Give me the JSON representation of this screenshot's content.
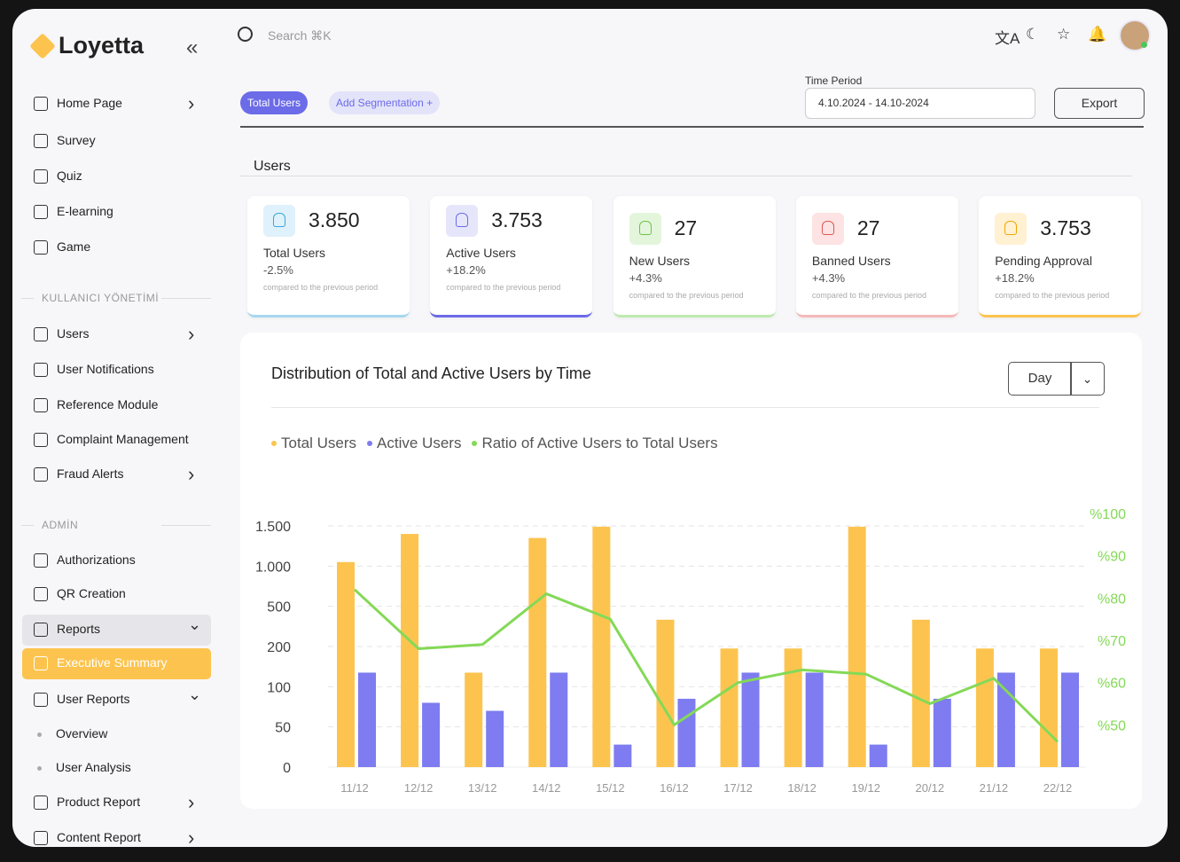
{
  "brand": "Loyetta",
  "search_placeholder": "Search ⌘K",
  "nav": [
    {
      "items": [
        "Home Page",
        "Survey",
        "Quiz",
        "E-learning",
        "Game"
      ]
    },
    {
      "heading": "KULLANICI YÖNETİMİ",
      "items": [
        "Users",
        "User Notifications",
        "Reference Module",
        "Complaint Management",
        "Fraud Alerts"
      ]
    },
    {
      "heading": "ADMİN",
      "items": [
        "Authorizations",
        "QR Creation",
        "Reports",
        "Executive Summary",
        "User Reports",
        "Overview",
        "User Analysis",
        "Product Report",
        "Content Report"
      ]
    }
  ],
  "toolbar": {
    "tabs": [
      "Total Users",
      "Add Segmentation +"
    ],
    "period_label": "Time Period",
    "period_value": "4.10.2024 - 14.10-2024",
    "export": "Export"
  },
  "section_title": "Users",
  "cards": [
    {
      "value": "3.850",
      "label": "Total Users",
      "change": "-2.5%",
      "note": "compared to the previous period"
    },
    {
      "value": "3.753",
      "label": "Active Users",
      "change": "+18.2%",
      "note": "compared to the previous period"
    },
    {
      "value": "27",
      "label": "New Users",
      "change": "+4.3%",
      "note": "compared to the previous period"
    },
    {
      "value": "27",
      "label": "Banned Users",
      "change": "+4.3%",
      "note": "compared to the previous period"
    },
    {
      "value": "3.753",
      "label": "Pending Approval",
      "change": "+18.2%",
      "note": "compared to the previous period"
    }
  ],
  "chart_period": "Day",
  "chart_data": {
    "type": "bar",
    "title": "Distribution of Total and Active Users by Time",
    "categories": [
      "11/12",
      "12/12",
      "13/12",
      "14/12",
      "15/12",
      "16/12",
      "17/12",
      "18/12",
      "19/12",
      "20/12",
      "21/12",
      "22/12"
    ],
    "series": [
      {
        "name": "Total Users",
        "color": "#fcc44f",
        "values": [
          1050,
          1400,
          135,
          1350,
          1490,
          400,
          195,
          195,
          1490,
          400,
          195,
          195
        ]
      },
      {
        "name": "Active Users",
        "color": "#7e7cf0",
        "values": [
          135,
          80,
          70,
          135,
          28,
          85,
          135,
          135,
          28,
          85,
          135,
          135
        ]
      },
      {
        "name": "Ratio of Active Users to Total Users",
        "color": "#84d957",
        "type": "line",
        "axis": "y2",
        "values": [
          82,
          68,
          69,
          81,
          75,
          50,
          60,
          63,
          62,
          55,
          61,
          46
        ]
      }
    ],
    "ylim": [
      0,
      1500
    ],
    "yticks": [
      0,
      50,
      100,
      200,
      500,
      {
        "value": 1000,
        "label": "1.000"
      },
      {
        "value": 1500,
        "label": "1.500"
      }
    ],
    "y2lim": [
      40,
      100
    ],
    "y2ticks": [
      {
        "value": 50,
        "label": "%50"
      },
      {
        "value": 60,
        "label": "%60"
      },
      {
        "value": 70,
        "label": "%70"
      },
      {
        "value": 80,
        "label": "%80"
      },
      {
        "value": 90,
        "label": "%90"
      },
      {
        "value": 100,
        "label": "%100"
      }
    ],
    "grid": true,
    "legend": "top-left"
  }
}
